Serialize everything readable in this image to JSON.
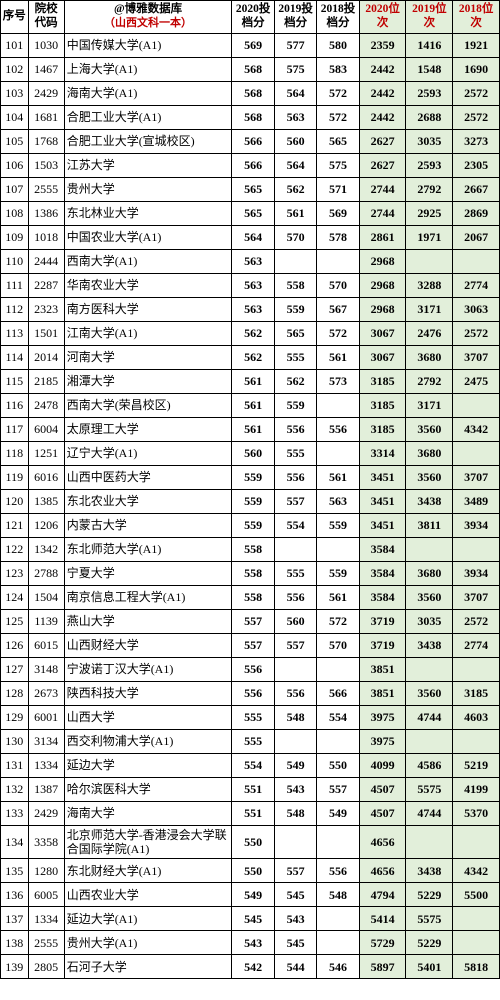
{
  "header": {
    "seq": "序号",
    "code": "院校代码",
    "db_line1": "@博雅数据库",
    "db_line2": "（山西文科一本）",
    "score2020": "2020投档分",
    "score2019": "2019投档分",
    "score2018": "2018投档分",
    "rank2020": "2020位次",
    "rank2019": "2019位次",
    "rank2018": "2018位次"
  },
  "rows": [
    {
      "seq": "101",
      "code": "1030",
      "name": "中国传媒大学(A1)",
      "s20": "569",
      "s19": "577",
      "s18": "580",
      "r20": "2359",
      "r19": "1416",
      "r18": "1921"
    },
    {
      "seq": "102",
      "code": "1467",
      "name": "上海大学(A1)",
      "s20": "568",
      "s19": "575",
      "s18": "583",
      "r20": "2442",
      "r19": "1548",
      "r18": "1690"
    },
    {
      "seq": "103",
      "code": "2429",
      "name": "海南大学(A1)",
      "s20": "568",
      "s19": "564",
      "s18": "572",
      "r20": "2442",
      "r19": "2593",
      "r18": "2572"
    },
    {
      "seq": "104",
      "code": "1681",
      "name": "合肥工业大学(A1)",
      "s20": "568",
      "s19": "563",
      "s18": "572",
      "r20": "2442",
      "r19": "2688",
      "r18": "2572"
    },
    {
      "seq": "105",
      "code": "1768",
      "name": "合肥工业大学(宣城校区)",
      "s20": "566",
      "s19": "560",
      "s18": "565",
      "r20": "2627",
      "r19": "3035",
      "r18": "3273"
    },
    {
      "seq": "106",
      "code": "1503",
      "name": "江苏大学",
      "s20": "566",
      "s19": "564",
      "s18": "575",
      "r20": "2627",
      "r19": "2593",
      "r18": "2305"
    },
    {
      "seq": "107",
      "code": "2555",
      "name": "贵州大学",
      "s20": "565",
      "s19": "562",
      "s18": "571",
      "r20": "2744",
      "r19": "2792",
      "r18": "2667"
    },
    {
      "seq": "108",
      "code": "1386",
      "name": "东北林业大学",
      "s20": "565",
      "s19": "561",
      "s18": "569",
      "r20": "2744",
      "r19": "2925",
      "r18": "2869"
    },
    {
      "seq": "109",
      "code": "1018",
      "name": "中国农业大学(A1)",
      "s20": "564",
      "s19": "570",
      "s18": "578",
      "r20": "2861",
      "r19": "1971",
      "r18": "2067"
    },
    {
      "seq": "110",
      "code": "2444",
      "name": "西南大学(A1)",
      "s20": "563",
      "s19": "",
      "s18": "",
      "r20": "2968",
      "r19": "",
      "r18": ""
    },
    {
      "seq": "111",
      "code": "2287",
      "name": "华南农业大学",
      "s20": "563",
      "s19": "558",
      "s18": "570",
      "r20": "2968",
      "r19": "3288",
      "r18": "2774"
    },
    {
      "seq": "112",
      "code": "2323",
      "name": "南方医科大学",
      "s20": "563",
      "s19": "559",
      "s18": "567",
      "r20": "2968",
      "r19": "3171",
      "r18": "3063"
    },
    {
      "seq": "113",
      "code": "1501",
      "name": "江南大学(A1)",
      "s20": "562",
      "s19": "565",
      "s18": "572",
      "r20": "3067",
      "r19": "2476",
      "r18": "2572"
    },
    {
      "seq": "114",
      "code": "2014",
      "name": "河南大学",
      "s20": "562",
      "s19": "555",
      "s18": "561",
      "r20": "3067",
      "r19": "3680",
      "r18": "3707"
    },
    {
      "seq": "115",
      "code": "2185",
      "name": "湘潭大学",
      "s20": "561",
      "s19": "562",
      "s18": "573",
      "r20": "3185",
      "r19": "2792",
      "r18": "2475"
    },
    {
      "seq": "116",
      "code": "2478",
      "name": "西南大学(荣昌校区)",
      "s20": "561",
      "s19": "559",
      "s18": "",
      "r20": "3185",
      "r19": "3171",
      "r18": ""
    },
    {
      "seq": "117",
      "code": "6004",
      "name": "太原理工大学",
      "s20": "561",
      "s19": "556",
      "s18": "556",
      "r20": "3185",
      "r19": "3560",
      "r18": "4342"
    },
    {
      "seq": "118",
      "code": "1251",
      "name": "辽宁大学(A1)",
      "s20": "560",
      "s19": "555",
      "s18": "",
      "r20": "3314",
      "r19": "3680",
      "r18": ""
    },
    {
      "seq": "119",
      "code": "6016",
      "name": "山西中医药大学",
      "s20": "559",
      "s19": "556",
      "s18": "561",
      "r20": "3451",
      "r19": "3560",
      "r18": "3707"
    },
    {
      "seq": "120",
      "code": "1385",
      "name": "东北农业大学",
      "s20": "559",
      "s19": "557",
      "s18": "563",
      "r20": "3451",
      "r19": "3438",
      "r18": "3489"
    },
    {
      "seq": "121",
      "code": "1206",
      "name": "内蒙古大学",
      "s20": "559",
      "s19": "554",
      "s18": "559",
      "r20": "3451",
      "r19": "3811",
      "r18": "3934"
    },
    {
      "seq": "122",
      "code": "1342",
      "name": "东北师范大学(A1)",
      "s20": "558",
      "s19": "",
      "s18": "",
      "r20": "3584",
      "r19": "",
      "r18": ""
    },
    {
      "seq": "123",
      "code": "2788",
      "name": "宁夏大学",
      "s20": "558",
      "s19": "555",
      "s18": "559",
      "r20": "3584",
      "r19": "3680",
      "r18": "3934"
    },
    {
      "seq": "124",
      "code": "1504",
      "name": "南京信息工程大学(A1)",
      "s20": "558",
      "s19": "556",
      "s18": "561",
      "r20": "3584",
      "r19": "3560",
      "r18": "3707"
    },
    {
      "seq": "125",
      "code": "1139",
      "name": "燕山大学",
      "s20": "557",
      "s19": "560",
      "s18": "572",
      "r20": "3719",
      "r19": "3035",
      "r18": "2572"
    },
    {
      "seq": "126",
      "code": "6015",
      "name": "山西财经大学",
      "s20": "557",
      "s19": "557",
      "s18": "570",
      "r20": "3719",
      "r19": "3438",
      "r18": "2774"
    },
    {
      "seq": "127",
      "code": "3148",
      "name": "宁波诺丁汉大学(A1)",
      "s20": "556",
      "s19": "",
      "s18": "",
      "r20": "3851",
      "r19": "",
      "r18": ""
    },
    {
      "seq": "128",
      "code": "2673",
      "name": "陕西科技大学",
      "s20": "556",
      "s19": "556",
      "s18": "566",
      "r20": "3851",
      "r19": "3560",
      "r18": "3185"
    },
    {
      "seq": "129",
      "code": "6001",
      "name": "山西大学",
      "s20": "555",
      "s19": "548",
      "s18": "554",
      "r20": "3975",
      "r19": "4744",
      "r18": "4603"
    },
    {
      "seq": "130",
      "code": "3134",
      "name": "西交利物浦大学(A1)",
      "s20": "555",
      "s19": "",
      "s18": "",
      "r20": "3975",
      "r19": "",
      "r18": ""
    },
    {
      "seq": "131",
      "code": "1334",
      "name": "延边大学",
      "s20": "554",
      "s19": "549",
      "s18": "550",
      "r20": "4099",
      "r19": "4586",
      "r18": "5219"
    },
    {
      "seq": "132",
      "code": "1387",
      "name": "哈尔滨医科大学",
      "s20": "551",
      "s19": "543",
      "s18": "557",
      "r20": "4507",
      "r19": "5575",
      "r18": "4199"
    },
    {
      "seq": "133",
      "code": "2429",
      "name": "海南大学",
      "s20": "551",
      "s19": "548",
      "s18": "549",
      "r20": "4507",
      "r19": "4744",
      "r18": "5370"
    },
    {
      "seq": "134",
      "code": "3358",
      "name": "北京师范大学-香港浸会大学联合国际学院(A1)",
      "s20": "550",
      "s19": "",
      "s18": "",
      "r20": "4656",
      "r19": "",
      "r18": ""
    },
    {
      "seq": "135",
      "code": "1280",
      "name": "东北财经大学(A1)",
      "s20": "550",
      "s19": "557",
      "s18": "556",
      "r20": "4656",
      "r19": "3438",
      "r18": "4342"
    },
    {
      "seq": "136",
      "code": "6005",
      "name": "山西农业大学",
      "s20": "549",
      "s19": "545",
      "s18": "548",
      "r20": "4794",
      "r19": "5229",
      "r18": "5500"
    },
    {
      "seq": "137",
      "code": "1334",
      "name": "延边大学(A1)",
      "s20": "545",
      "s19": "543",
      "s18": "",
      "r20": "5414",
      "r19": "5575",
      "r18": ""
    },
    {
      "seq": "138",
      "code": "2555",
      "name": "贵州大学(A1)",
      "s20": "543",
      "s19": "545",
      "s18": "",
      "r20": "5729",
      "r19": "5229",
      "r18": ""
    },
    {
      "seq": "139",
      "code": "2805",
      "name": "石河子大学",
      "s20": "542",
      "s19": "544",
      "s18": "546",
      "r20": "5897",
      "r19": "5401",
      "r18": "5818"
    }
  ]
}
